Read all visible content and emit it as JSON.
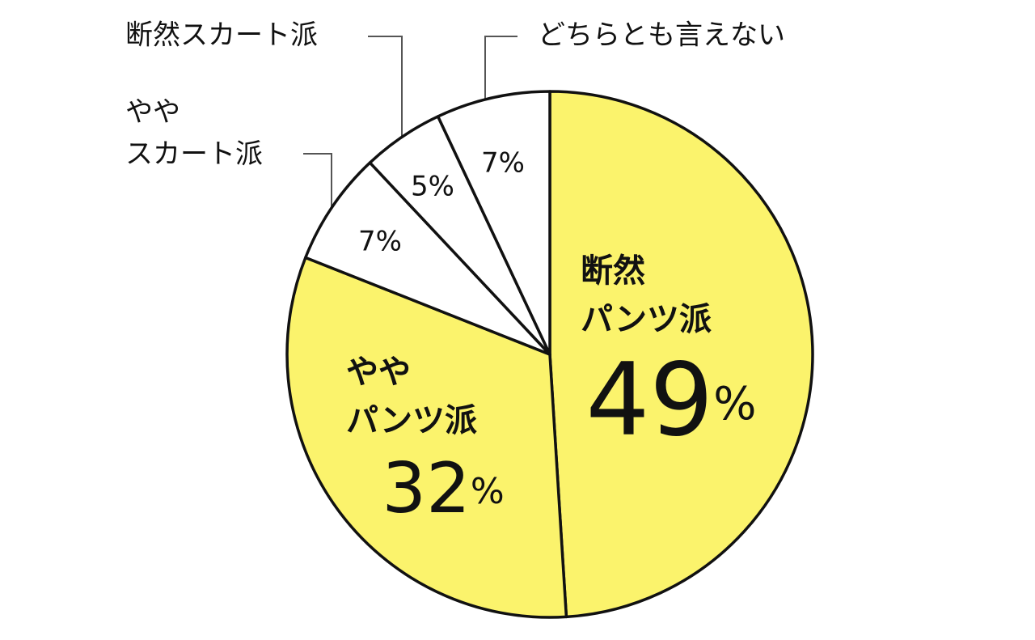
{
  "chart_data": {
    "type": "pie",
    "categories": [
      [
        "断然",
        "パンツ派"
      ],
      [
        "やや",
        "パンツ派"
      ],
      [
        "やや",
        "スカート派"
      ],
      [
        "断然スカート派"
      ],
      [
        "どちらとも言えない"
      ]
    ],
    "values": [
      49,
      32,
      7,
      5,
      7
    ],
    "value_labels": [
      "49%",
      "32%",
      "7%",
      "5%",
      "7%"
    ],
    "colors": [
      "#fbf36c",
      "#fbf36c",
      "#ffffff",
      "#ffffff",
      "#ffffff"
    ]
  }
}
